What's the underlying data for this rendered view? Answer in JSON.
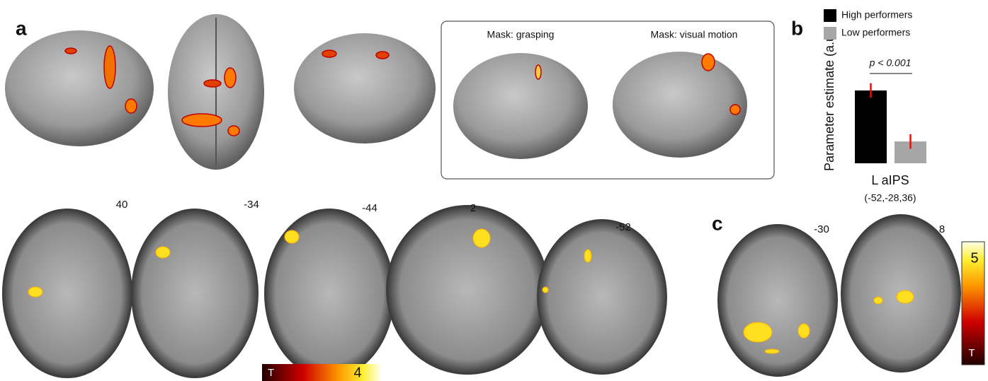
{
  "panel_labels": [
    "a",
    "b",
    "c"
  ],
  "panel_a": {
    "mask_box": {
      "labels": [
        "Mask: grasping",
        "Mask: visual motion"
      ]
    },
    "slices": [
      "40",
      "-34",
      "-44",
      "2",
      "-52"
    ],
    "colorbar": {
      "label": "T",
      "max_label": "4"
    }
  },
  "panel_c": {
    "slices": [
      "-30",
      "8"
    ],
    "colorbar": {
      "label": "T",
      "max_label": "5"
    }
  },
  "chart_data": {
    "type": "bar",
    "y_label": "Parameter estimate (a.u.)",
    "categories": [
      "L aIPS"
    ],
    "category_note": "(-52,-28,36)",
    "annotation": "p < 0.001",
    "error_color": "#e01010",
    "series": [
      {
        "name": "High performers",
        "color": "#000000",
        "values": [
          1.0
        ],
        "errors": [
          0.1
        ]
      },
      {
        "name": "Low performers",
        "color": "#a6a6a6",
        "values": [
          0.3
        ],
        "errors": [
          0.1
        ]
      }
    ]
  }
}
